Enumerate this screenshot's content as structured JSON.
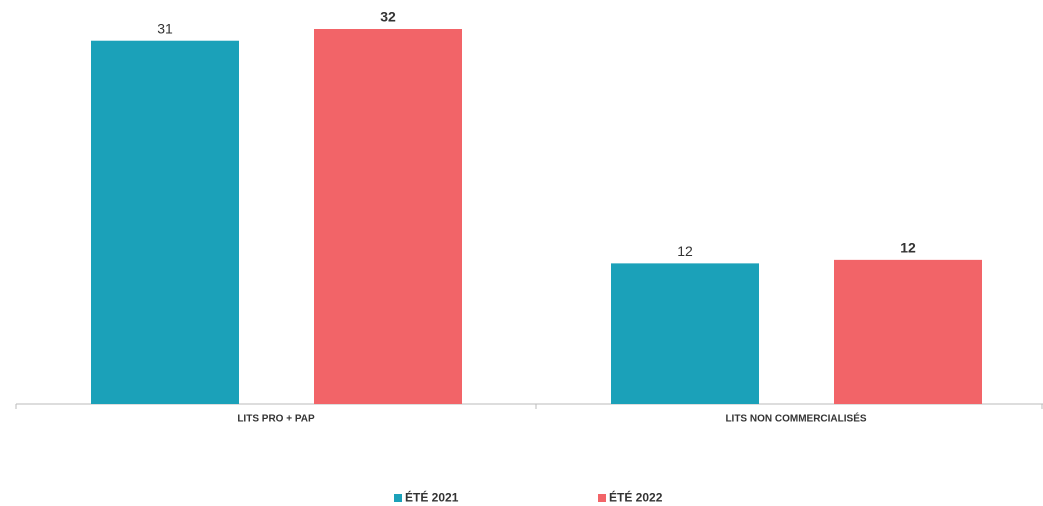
{
  "chart_data": {
    "type": "bar",
    "categories": [
      "LITS PRO + PAP",
      "LITS NON COMMERCIALISÉS"
    ],
    "series": [
      {
        "name": "ÉTÉ 2021",
        "color": "#1ba1b9",
        "values": [
          31,
          12
        ]
      },
      {
        "name": "ÉTÉ 2022",
        "color": "#f26468",
        "values": [
          32,
          12.3
        ],
        "value_labels": [
          "32",
          "12"
        ]
      }
    ]
  }
}
